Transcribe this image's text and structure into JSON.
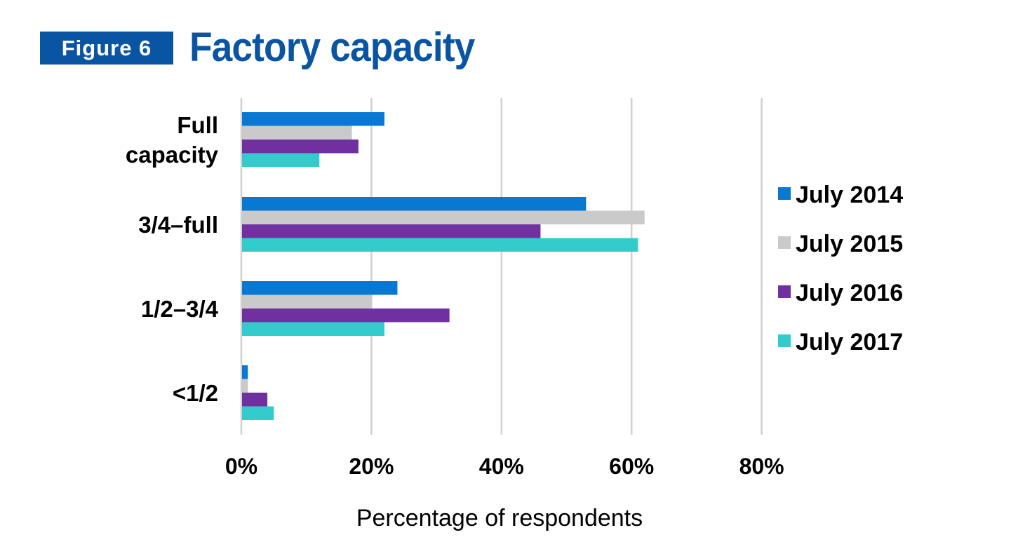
{
  "figure": {
    "badge": "Figure 6",
    "title": "Factory capacity",
    "badge_color": "#0a55a3",
    "title_color": "#0a55a3"
  },
  "chart_data": {
    "type": "bar",
    "orientation": "horizontal",
    "title": "Factory capacity",
    "categories": [
      "Full\ncapacity",
      "3/4–full",
      "1/2–3/4",
      "<1/2"
    ],
    "series": [
      {
        "name": "July 2014",
        "color": "#0878d2",
        "values": [
          22,
          53,
          24,
          1
        ]
      },
      {
        "name": "July 2015",
        "color": "#cacaca",
        "values": [
          17,
          62,
          20,
          1
        ]
      },
      {
        "name": "July 2016",
        "color": "#7030a0",
        "values": [
          18,
          46,
          32,
          4
        ]
      },
      {
        "name": "July 2017",
        "color": "#33cccc",
        "values": [
          12,
          61,
          22,
          5
        ]
      }
    ],
    "xlabel": "Percentage of respondents",
    "ylabel": "",
    "xlim": [
      0,
      80
    ],
    "xticks": [
      "0%",
      "20%",
      "40%",
      "60%",
      "80%"
    ],
    "grid": true,
    "legend_position": "right"
  }
}
